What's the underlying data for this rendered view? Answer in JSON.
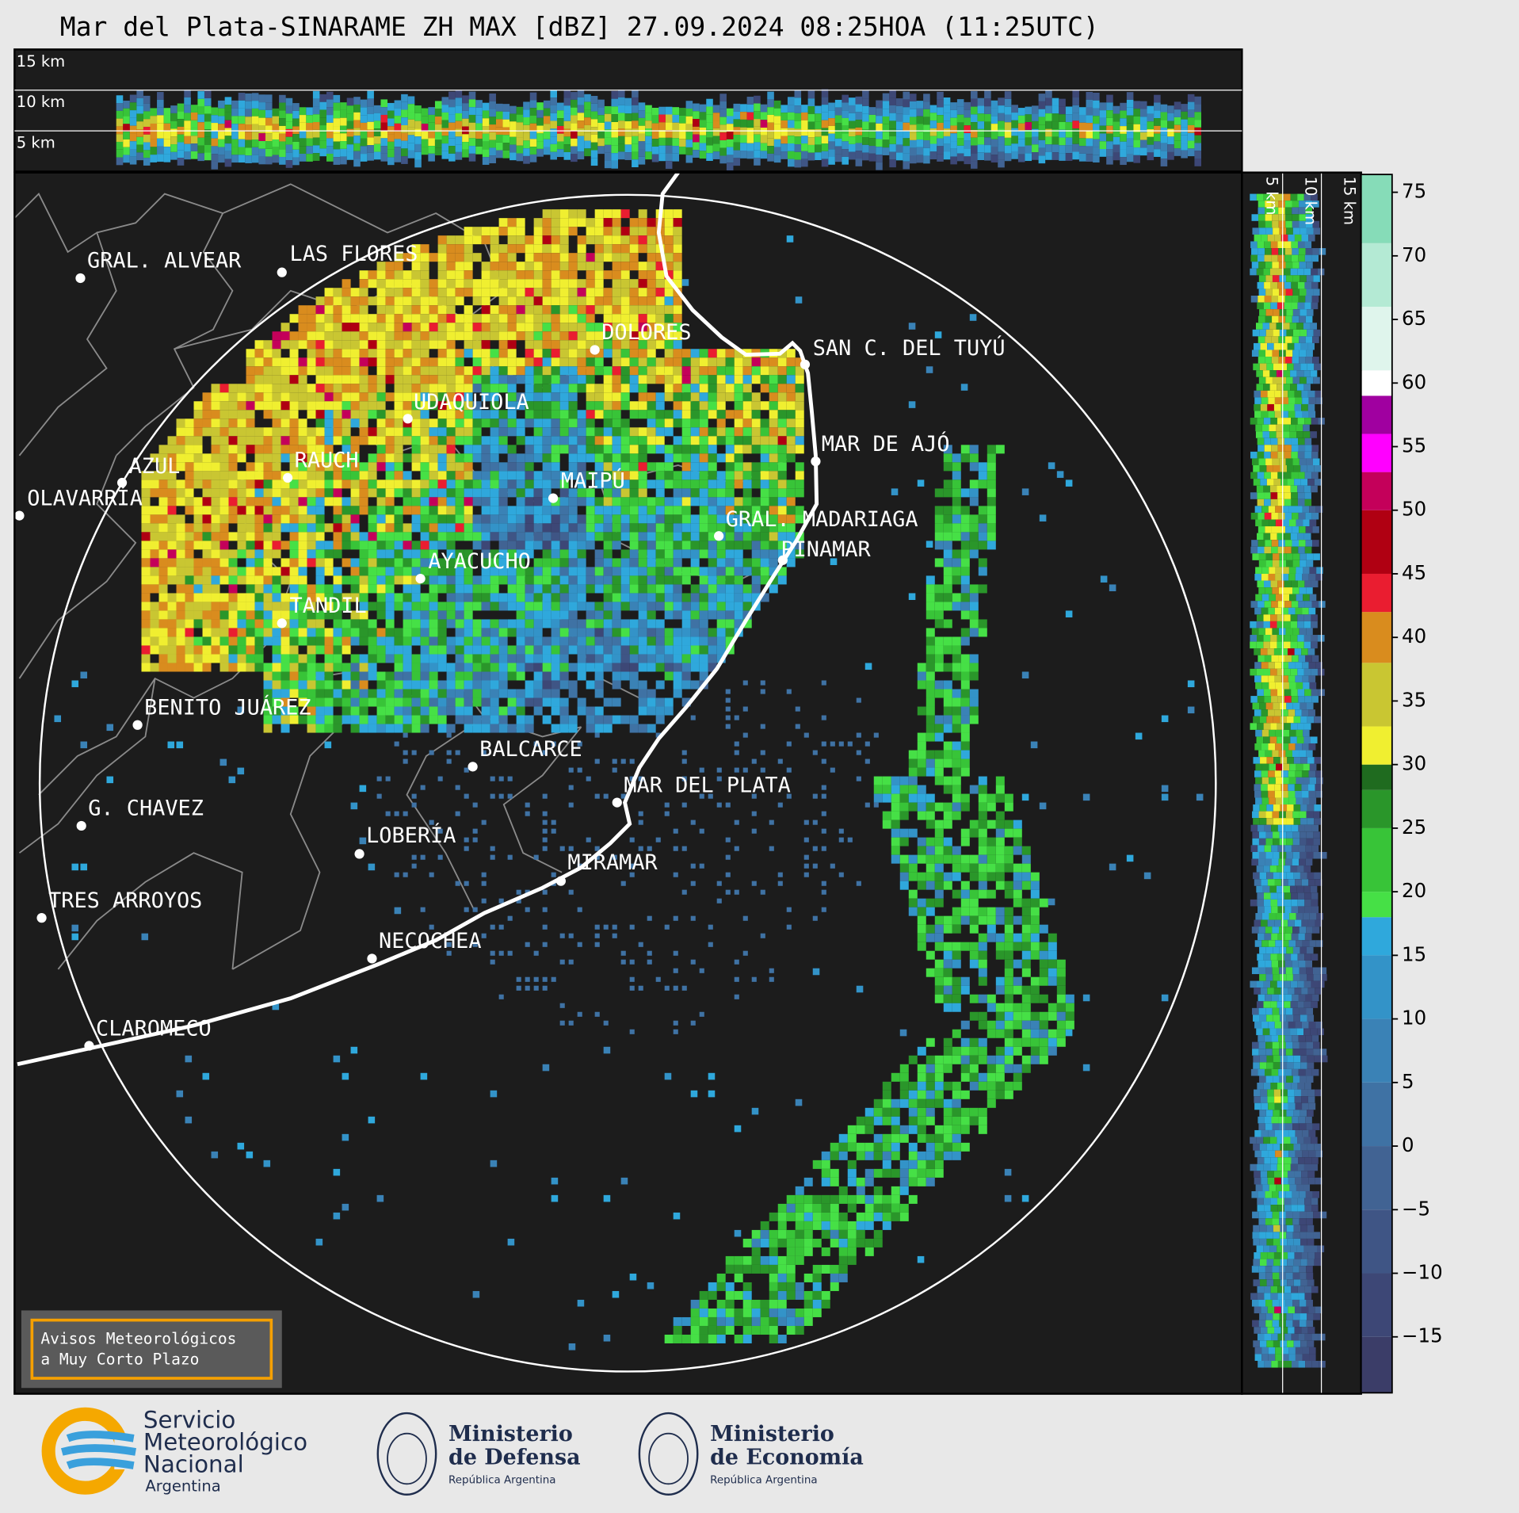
{
  "title": "Mar del Plata-SINARAME ZH MAX [dBZ] 27.09.2024 08:25HOA (11:25UTC)",
  "top_panel": {
    "height_labels": [
      "15 km",
      "10 km",
      "5 km"
    ]
  },
  "side_panel": {
    "height_labels": [
      "5 km",
      "10 km",
      "15 km"
    ]
  },
  "cities": [
    "GRAL. ALVEAR",
    "LAS FLORES",
    "DOLORES",
    "SAN C. DEL TUYÚ",
    "UDAQUIOLA",
    "MAR DE AJÓ",
    "AZUL",
    "RAUCH",
    "MAIPÚ",
    "OLAVARRÍA",
    "GRAL. MADARIAGA",
    "PINAMAR",
    "AYACUCHO",
    "TANDIL",
    "BENITO JUÁREZ",
    "BALCARCE",
    "MAR DEL PLATA",
    "G. CHAVEZ",
    "LOBERÍA",
    "MIRAMAR",
    "TRES ARROYOS",
    "NECOCHEA",
    "CLAROMECO"
  ],
  "notice": {
    "lines": [
      "Avisos Meteorológicos",
      "a Muy Corto Plazo"
    ]
  },
  "colorbar": {
    "lim": [
      -19.4,
      76.4
    ],
    "ticks": [
      75,
      70,
      65,
      60,
      55,
      50,
      45,
      40,
      35,
      30,
      25,
      20,
      15,
      10,
      5,
      0,
      {
        "value": -5,
        "label": "−5"
      },
      {
        "value": -10,
        "label": "−10"
      },
      {
        "value": -15,
        "label": "−15"
      }
    ],
    "bands": [
      {
        "from": -19.4,
        "to": -15,
        "color": "#3b3d68"
      },
      {
        "from": -15,
        "to": -10,
        "color": "#3d4776"
      },
      {
        "from": -10,
        "to": -5,
        "color": "#3f5585"
      },
      {
        "from": -5,
        "to": 0,
        "color": "#416393"
      },
      {
        "from": 0,
        "to": 5,
        "color": "#3f72a4"
      },
      {
        "from": 5,
        "to": 10,
        "color": "#3a82b6"
      },
      {
        "from": 10,
        "to": 15,
        "color": "#3393c8"
      },
      {
        "from": 15,
        "to": 18,
        "color": "#2fa8dc"
      },
      {
        "from": 18,
        "to": 20,
        "color": "#46e046"
      },
      {
        "from": 20,
        "to": 25,
        "color": "#38c438"
      },
      {
        "from": 25,
        "to": 28,
        "color": "#2a962a"
      },
      {
        "from": 28,
        "to": 30,
        "color": "#1f6b1f"
      },
      {
        "from": 30,
        "to": 33,
        "color": "#f0ef30"
      },
      {
        "from": 33,
        "to": 38,
        "color": "#c9c632"
      },
      {
        "from": 38,
        "to": 42,
        "color": "#d98c1e"
      },
      {
        "from": 42,
        "to": 45,
        "color": "#ea1d30"
      },
      {
        "from": 45,
        "to": 50,
        "color": "#b00012"
      },
      {
        "from": 50,
        "to": 53,
        "color": "#c4005a"
      },
      {
        "from": 53,
        "to": 56,
        "color": "#ff00ff"
      },
      {
        "from": 56,
        "to": 59,
        "color": "#a000a0"
      },
      {
        "from": 59,
        "to": 61,
        "color": "#ffffff"
      },
      {
        "from": 61,
        "to": 66,
        "color": "#dff5ec"
      },
      {
        "from": 66,
        "to": 71,
        "color": "#b4ead4"
      },
      {
        "from": 71,
        "to": 76.4,
        "color": "#86dcb8"
      }
    ]
  },
  "logos": {
    "smn": [
      "Servicio",
      "Meteorológico",
      "Nacional",
      "Argentina"
    ],
    "defensa": [
      "Ministerio",
      "de Defensa",
      "República Argentina"
    ],
    "economia": [
      "Ministerio",
      "de Economía",
      "República Argentina"
    ]
  }
}
